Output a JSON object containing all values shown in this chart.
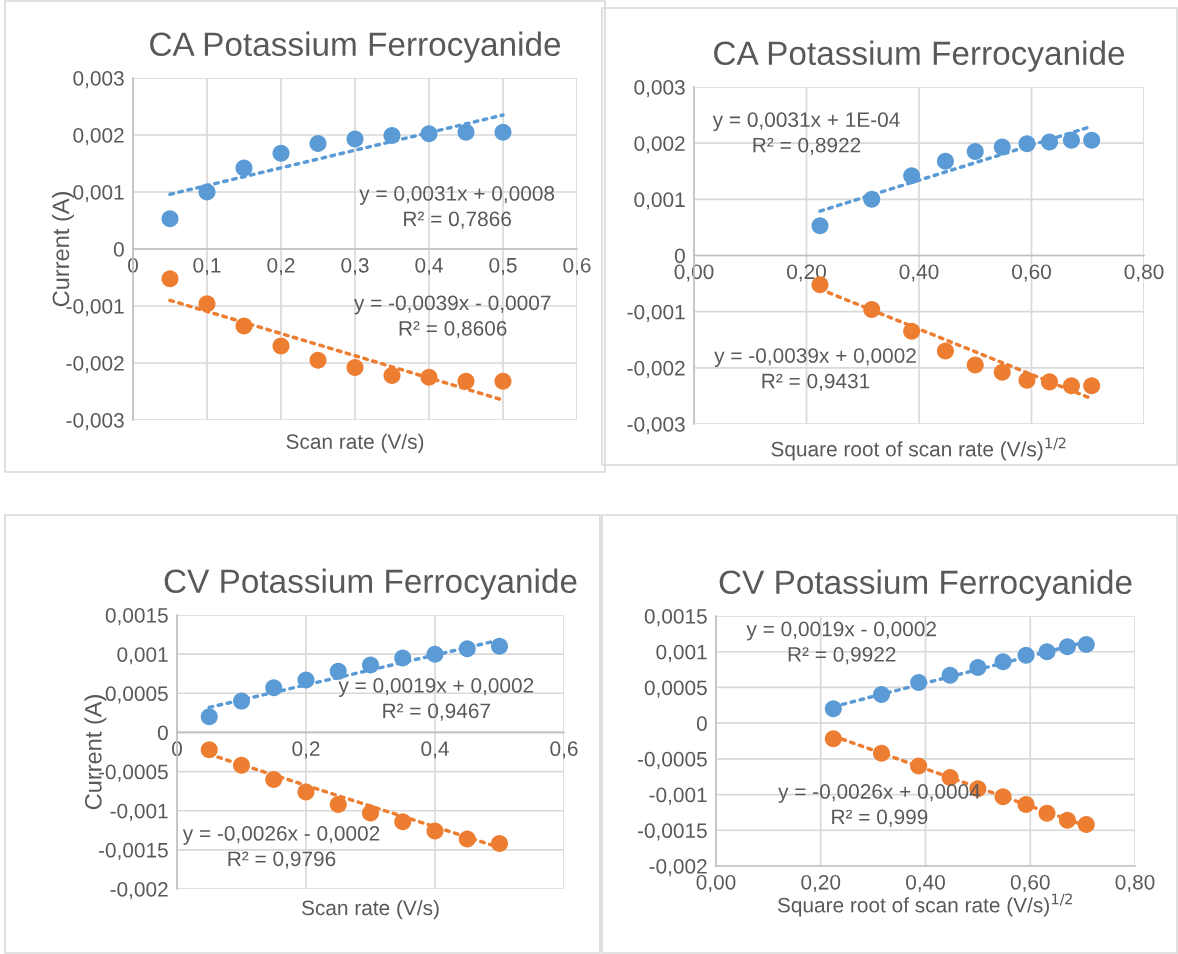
{
  "chart_data": [
    {
      "type": "scatter",
      "title": "CA Potassium Ferrocyanide",
      "xlabel": "Scan rate (V/s)",
      "ylabel": "Current (A)",
      "grid": true,
      "legend": false,
      "marker": "circle",
      "xlim": [
        0,
        0.6
      ],
      "xticks": [
        0,
        {
          "value": 0.1,
          "label": "0,1"
        },
        {
          "value": 0.2,
          "label": "0,2"
        },
        {
          "value": 0.3,
          "label": "0,3"
        },
        {
          "value": 0.4,
          "label": "0,4"
        },
        {
          "value": 0.5,
          "label": "0,5"
        },
        {
          "value": 0.6,
          "label": "0,6"
        }
      ],
      "ylim": [
        -0.003,
        0.003
      ],
      "yticks": [
        {
          "value": -0.003,
          "label": "-0,003"
        },
        {
          "value": -0.002,
          "label": "-0,002"
        },
        {
          "value": -0.001,
          "label": "-0,001"
        },
        0,
        {
          "value": 0.001,
          "label": "0,001"
        },
        {
          "value": 0.002,
          "label": "0,002"
        },
        {
          "value": 0.003,
          "label": "0,003"
        }
      ],
      "x": [
        0.05,
        0.1,
        0.15,
        0.2,
        0.25,
        0.3,
        0.35,
        0.4,
        0.45,
        0.5
      ],
      "series": [
        {
          "type": "scatter",
          "color": "#5b9bd5",
          "values": [
            0.00053,
            0.001,
            0.00142,
            0.00168,
            0.00185,
            0.00193,
            0.00199,
            0.00202,
            0.00205,
            0.00205
          ]
        },
        {
          "type": "scatter",
          "color": "#ed7d31",
          "values": [
            -0.00052,
            -0.00096,
            -0.00135,
            -0.0017,
            -0.00195,
            -0.00208,
            -0.00222,
            -0.00225,
            -0.00232,
            -0.00232
          ]
        },
        {
          "type": "line",
          "line_style": "dotted",
          "marker": "none",
          "color": "#5b9bd5",
          "x": [
            0.05,
            0.5
          ],
          "values": [
            0.00096,
            0.00235
          ]
        },
        {
          "type": "line",
          "line_style": "dotted",
          "marker": "none",
          "color": "#ed7d31",
          "x": [
            0.05,
            0.5
          ],
          "values": [
            -0.0009,
            -0.00265
          ]
        }
      ],
      "annotations": [
        "y = 0,0031x + 0,0008\nR² = 0,7866",
        "y = -0,0039x - 0,0007\nR² = 0,8606"
      ]
    },
    {
      "type": "scatter",
      "title": "CA Potassium Ferrocyanide",
      "xlabel": "Square root of scan rate (V/s)$^{1/2}$",
      "grid": true,
      "legend": false,
      "marker": "circle",
      "xlim": [
        0,
        0.8
      ],
      "xticks": [
        {
          "value": 0,
          "label": "0,00"
        },
        {
          "value": 0.2,
          "label": "0,20"
        },
        {
          "value": 0.4,
          "label": "0,40"
        },
        {
          "value": 0.6,
          "label": "0,60"
        },
        {
          "value": 0.8,
          "label": "0,80"
        }
      ],
      "ylim": [
        -0.003,
        0.003
      ],
      "yticks": [
        {
          "value": -0.003,
          "label": "-0,003"
        },
        {
          "value": -0.002,
          "label": "-0,002"
        },
        {
          "value": -0.001,
          "label": "-0,001"
        },
        0,
        {
          "value": 0.001,
          "label": "0,001"
        },
        {
          "value": 0.002,
          "label": "0,002"
        },
        {
          "value": 0.003,
          "label": "0,003"
        }
      ],
      "x": [
        0.224,
        0.316,
        0.387,
        0.447,
        0.5,
        0.548,
        0.592,
        0.632,
        0.671,
        0.707
      ],
      "series": [
        {
          "type": "scatter",
          "color": "#5b9bd5",
          "values": [
            0.00053,
            0.001,
            0.00142,
            0.00168,
            0.00185,
            0.00193,
            0.00199,
            0.00202,
            0.00205,
            0.00205
          ]
        },
        {
          "type": "scatter",
          "color": "#ed7d31",
          "values": [
            -0.00052,
            -0.00096,
            -0.00135,
            -0.0017,
            -0.00195,
            -0.00208,
            -0.00222,
            -0.00225,
            -0.00232,
            -0.00232
          ]
        },
        {
          "type": "line",
          "line_style": "dotted",
          "marker": "none",
          "color": "#5b9bd5",
          "x": [
            0.224,
            0.707
          ],
          "values": [
            0.00079,
            0.0023
          ]
        },
        {
          "type": "line",
          "line_style": "dotted",
          "marker": "none",
          "color": "#ed7d31",
          "x": [
            0.224,
            0.707
          ],
          "values": [
            -0.0006,
            -0.00255
          ]
        }
      ],
      "annotations": [
        "y = 0,0031x + 1E-04\nR² = 0,8922",
        "y = -0,0039x + 0,0002\nR² = 0,9431"
      ]
    },
    {
      "type": "scatter",
      "title": "CV Potassium Ferrocyanide",
      "xlabel": "Scan rate (V/s)",
      "ylabel": "Current (A)",
      "grid": true,
      "legend": false,
      "marker": "circle",
      "xlim": [
        0,
        0.6
      ],
      "xticks": [
        0,
        {
          "value": 0.2,
          "label": "0,2"
        },
        {
          "value": 0.4,
          "label": "0,4"
        },
        {
          "value": 0.6,
          "label": "0,6"
        }
      ],
      "ylim": [
        -0.002,
        0.0015
      ],
      "yticks": [
        {
          "value": -0.002,
          "label": "-0,002"
        },
        {
          "value": -0.0015,
          "label": "-0,0015"
        },
        {
          "value": -0.001,
          "label": "-0,001"
        },
        {
          "value": -0.0005,
          "label": "-0,0005"
        },
        0,
        {
          "value": 0.0005,
          "label": "0,0005"
        },
        {
          "value": 0.001,
          "label": "0,001"
        },
        {
          "value": 0.0015,
          "label": "0,0015"
        }
      ],
      "x": [
        0.05,
        0.1,
        0.15,
        0.2,
        0.25,
        0.3,
        0.35,
        0.4,
        0.45,
        0.5
      ],
      "series": [
        {
          "type": "scatter",
          "color": "#5b9bd5",
          "values": [
            0.0002,
            0.0004,
            0.00057,
            0.00067,
            0.00078,
            0.00086,
            0.00095,
            0.001,
            0.00107,
            0.0011
          ]
        },
        {
          "type": "scatter",
          "color": "#ed7d31",
          "values": [
            -0.00022,
            -0.00042,
            -0.0006,
            -0.00076,
            -0.00092,
            -0.00103,
            -0.00114,
            -0.00126,
            -0.00136,
            -0.00142
          ]
        },
        {
          "type": "line",
          "line_style": "dotted",
          "marker": "none",
          "color": "#5b9bd5",
          "x": [
            0.05,
            0.5
          ],
          "values": [
            0.00032,
            0.00118
          ]
        },
        {
          "type": "line",
          "line_style": "dotted",
          "marker": "none",
          "color": "#ed7d31",
          "x": [
            0.05,
            0.5
          ],
          "values": [
            -0.00028,
            -0.00147
          ]
        }
      ],
      "annotations": [
        "y = 0,0019x + 0,0002\nR² = 0,9467",
        "y = -0,0026x - 0,0002\nR² = 0,9796"
      ]
    },
    {
      "type": "scatter",
      "title": "CV Potassium Ferrocyanide",
      "xlabel": "Square root of scan rate (V/s)$^{1/2}$",
      "grid": true,
      "legend": false,
      "marker": "circle",
      "xlim": [
        0,
        0.8
      ],
      "xticks": [
        {
          "value": 0,
          "label": "0,00"
        },
        {
          "value": 0.2,
          "label": "0,20"
        },
        {
          "value": 0.4,
          "label": "0,40"
        },
        {
          "value": 0.6,
          "label": "0,60"
        },
        {
          "value": 0.8,
          "label": "0,80"
        }
      ],
      "ylim": [
        -0.002,
        0.0015
      ],
      "yticks": [
        {
          "value": -0.002,
          "label": "-0,002"
        },
        {
          "value": -0.0015,
          "label": "-0,0015"
        },
        {
          "value": -0.001,
          "label": "-0,001"
        },
        {
          "value": -0.0005,
          "label": "-0,0005"
        },
        0,
        {
          "value": 0.0005,
          "label": "0,0005"
        },
        {
          "value": 0.001,
          "label": "0,001"
        },
        {
          "value": 0.0015,
          "label": "0,0015"
        }
      ],
      "x": [
        0.224,
        0.316,
        0.387,
        0.447,
        0.5,
        0.548,
        0.592,
        0.632,
        0.671,
        0.707
      ],
      "series": [
        {
          "type": "scatter",
          "color": "#5b9bd5",
          "values": [
            0.0002,
            0.0004,
            0.00057,
            0.00067,
            0.00078,
            0.00086,
            0.00095,
            0.001,
            0.00107,
            0.0011
          ]
        },
        {
          "color": "#ed7d31",
          "values": [
            -0.00022,
            -0.00042,
            -0.0006,
            -0.00076,
            -0.00092,
            -0.00103,
            -0.00114,
            -0.00126,
            -0.00136,
            -0.00142
          ]
        },
        {
          "type": "line",
          "line_style": "dotted",
          "marker": "none",
          "color": "#5b9bd5",
          "x": [
            0.224,
            0.707
          ],
          "values": [
            0.00023,
            0.00114
          ]
        },
        {
          "type": "line",
          "line_style": "dotted",
          "marker": "none",
          "color": "#ed7d31",
          "x": [
            0.224,
            0.707
          ],
          "values": [
            -0.00018,
            -0.00144
          ]
        }
      ],
      "annotations": [
        "y = 0,0019x - 0,0002\nR² = 0,9922",
        "y = -0,0026x + 0,0004\nR² = 0,999"
      ]
    }
  ]
}
